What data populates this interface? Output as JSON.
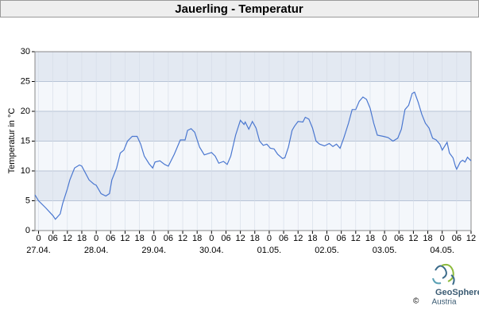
{
  "chart_data": {
    "type": "line",
    "title": "Jauerling - Temperatur",
    "y_label": "Temperatur in °C",
    "x": [
      -1.5,
      0,
      3,
      6,
      7,
      9,
      10,
      12,
      13,
      15,
      17,
      18,
      21,
      23,
      24,
      26,
      28,
      29.5,
      30.5,
      32.5,
      34,
      35.5,
      37,
      39,
      41,
      42.5,
      44,
      46,
      47.5,
      48.5,
      50.5,
      52.5,
      54,
      56.5,
      59,
      61,
      62,
      63.5,
      65,
      67,
      69,
      72,
      73.5,
      75,
      77,
      78.5,
      80,
      82,
      84,
      85.5,
      86,
      87.5,
      89,
      90.5,
      92,
      93.5,
      95,
      96.5,
      98,
      99.5,
      101.5,
      102.5,
      104,
      105.5,
      106.5,
      108,
      110,
      111,
      112.5,
      114,
      115.5,
      117,
      119,
      121,
      122.5,
      124,
      125.5,
      127,
      129,
      130.5,
      132,
      133.5,
      135,
      136.5,
      138,
      139.5,
      141,
      143.5,
      145.5,
      147.5,
      149.5,
      151,
      152.5,
      154,
      155.5,
      156.5,
      158,
      159.5,
      161,
      162.5,
      164,
      165.5,
      167,
      168,
      170,
      171,
      172.5,
      173.5,
      174,
      175.5,
      176.5,
      177.5,
      178.5,
      180
    ],
    "series": [
      {
        "name": "Temperatur",
        "color": "#4a77d0",
        "values": [
          6,
          5,
          3.8,
          2.5,
          1.9,
          2.8,
          4.5,
          7,
          8.5,
          10.5,
          11,
          10.8,
          8.5,
          7.8,
          7.6,
          6.2,
          5.8,
          6.2,
          8.5,
          10.5,
          13,
          13.5,
          15,
          15.8,
          15.8,
          14.5,
          12.5,
          11.2,
          10.5,
          11.5,
          11.7,
          11.1,
          10.8,
          12.8,
          15.2,
          15.2,
          16.8,
          17.1,
          16.5,
          14,
          12.7,
          13.1,
          12.5,
          11.3,
          11.6,
          11.1,
          12.5,
          16,
          18.5,
          17.8,
          18.2,
          17,
          18.3,
          17.2,
          15,
          14.3,
          14.5,
          13.8,
          13.7,
          12.8,
          12.1,
          12.2,
          14,
          16.8,
          17.5,
          18.3,
          18.2,
          19,
          18.7,
          17.2,
          15,
          14.5,
          14.2,
          14.6,
          14.1,
          14.5,
          13.8,
          15.5,
          18,
          20.3,
          20.3,
          21.7,
          22.4,
          22,
          20.5,
          18,
          16,
          15.8,
          15.6,
          15,
          15.5,
          17,
          20.3,
          21,
          23,
          23.2,
          21.5,
          19.5,
          18,
          17.2,
          15.5,
          15.2,
          14.5,
          13.5,
          14.8,
          13,
          12.2,
          10.8,
          10.3,
          11.5,
          11.8,
          11.5,
          12.3,
          11.7
        ]
      }
    ],
    "xlim": [
      -1.5,
      180
    ],
    "ylim": [
      0,
      30
    ],
    "yticks": [
      0,
      5,
      10,
      15,
      20,
      25,
      30
    ],
    "xticks": [
      0,
      {
        "value": 6,
        "label": "06"
      },
      12,
      18,
      {
        "value": 24,
        "label": "0"
      },
      {
        "value": 30,
        "label": "06"
      },
      {
        "value": 36,
        "label": "12"
      },
      {
        "value": 42,
        "label": "18"
      },
      {
        "value": 48,
        "label": "0"
      },
      {
        "value": 54,
        "label": "06"
      },
      {
        "value": 60,
        "label": "12"
      },
      {
        "value": 66,
        "label": "18"
      },
      {
        "value": 72,
        "label": "0"
      },
      {
        "value": 78,
        "label": "06"
      },
      {
        "value": 84,
        "label": "12"
      },
      {
        "value": 90,
        "label": "18"
      },
      {
        "value": 96,
        "label": "0"
      },
      {
        "value": 102,
        "label": "06"
      },
      {
        "value": 108,
        "label": "12"
      },
      {
        "value": 114,
        "label": "18"
      },
      {
        "value": 120,
        "label": "0"
      },
      {
        "value": 126,
        "label": "06"
      },
      {
        "value": 132,
        "label": "12"
      },
      {
        "value": 138,
        "label": "18"
      },
      {
        "value": 144,
        "label": "0"
      },
      {
        "value": 150,
        "label": "06"
      },
      {
        "value": 156,
        "label": "12"
      },
      {
        "value": 162,
        "label": "18"
      },
      {
        "value": 168,
        "label": "0"
      },
      {
        "value": 174,
        "label": "06"
      },
      {
        "value": 180,
        "label": "12"
      }
    ],
    "x_dates": [
      {
        "value": 0,
        "label": "27.04."
      },
      {
        "value": 24,
        "label": "28.04."
      },
      {
        "value": 48,
        "label": "29.04."
      },
      {
        "value": 72,
        "label": "30.04."
      },
      {
        "value": 96,
        "label": "01.05."
      },
      {
        "value": 120,
        "label": "02.05."
      },
      {
        "value": 144,
        "label": "03.05."
      },
      {
        "value": 168,
        "label": "04.05."
      }
    ],
    "grid": true,
    "band_colors": [
      "#f4f7fb",
      "#e3e9f2"
    ]
  },
  "logo": {
    "name": "GeoSphere",
    "sub": "Austria",
    "copyright": "©"
  }
}
